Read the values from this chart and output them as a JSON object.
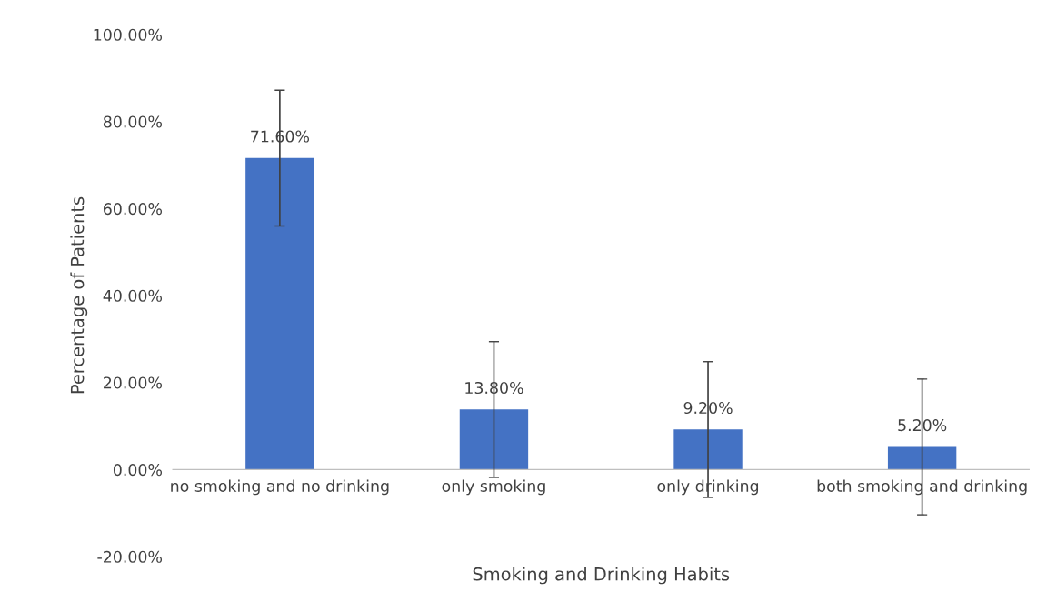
{
  "chart_data": {
    "type": "bar",
    "xlabel": "Smoking and Drinking Habits",
    "ylabel": "Percentage of Patients",
    "categories": [
      "no smoking and no drinking",
      "only smoking",
      "only drinking",
      "both smoking and drinking"
    ],
    "values": [
      71.6,
      13.8,
      9.2,
      5.2
    ],
    "color": "#4472c4",
    "errors": [
      15.6,
      15.6,
      15.6,
      15.6
    ],
    "value_labels": [
      "71.60%",
      "13.80%",
      "9.20%",
      "5.20%"
    ],
    "ylim": [
      -20,
      100
    ],
    "yticks": [
      {
        "value": -20,
        "label": "-20.00%"
      },
      {
        "value": 0,
        "label": "0.00%"
      },
      {
        "value": 20,
        "label": "20.00%"
      },
      {
        "value": 40,
        "label": "40.00%"
      },
      {
        "value": 60,
        "label": "60.00%"
      },
      {
        "value": 80,
        "label": "80.00%"
      },
      {
        "value": 100,
        "label": "100.00%"
      }
    ],
    "grid": false,
    "legend": false
  }
}
